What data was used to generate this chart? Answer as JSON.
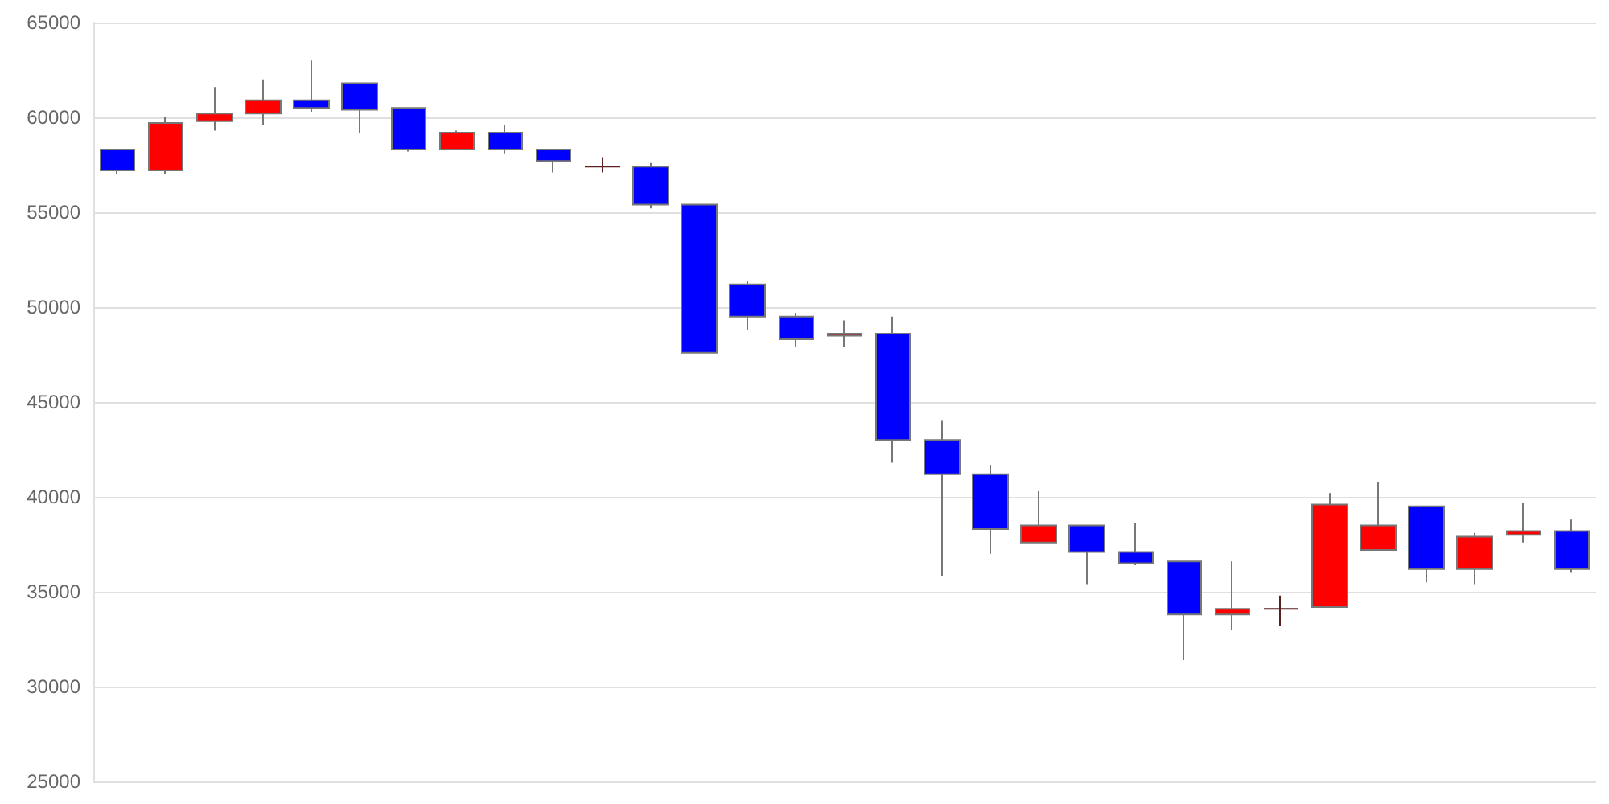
{
  "chart_data": {
    "type": "candlestick",
    "categories": [
      null,
      null,
      null,
      null,
      null,
      null,
      null,
      null,
      null,
      null,
      null,
      null,
      null,
      null,
      null,
      null,
      null,
      null,
      null,
      null,
      null,
      null,
      null,
      null,
      null,
      null,
      null,
      null,
      null,
      null,
      null
    ],
    "ohlc": [
      [
        58300,
        58300,
        57000,
        57200
      ],
      [
        57200,
        60000,
        57000,
        59700
      ],
      [
        59800,
        61600,
        59300,
        60200
      ],
      [
        60200,
        62000,
        59600,
        60900
      ],
      [
        60900,
        63000,
        60300,
        60500
      ],
      [
        61800,
        61800,
        59200,
        60400
      ],
      [
        60500,
        60500,
        58200,
        58300
      ],
      [
        58300,
        59300,
        58300,
        59200
      ],
      [
        59200,
        59600,
        58100,
        58300
      ],
      [
        58300,
        58300,
        57100,
        57700
      ],
      [
        57400,
        57900,
        57100,
        57400
      ],
      [
        57400,
        57600,
        55200,
        55400
      ],
      [
        55400,
        55400,
        47600,
        47600
      ],
      [
        51200,
        51400,
        48800,
        49500
      ],
      [
        49500,
        49700,
        47900,
        48300
      ],
      [
        48500,
        49300,
        47900,
        48600
      ],
      [
        48600,
        49500,
        41800,
        43000
      ],
      [
        43000,
        44000,
        35800,
        41200
      ],
      [
        41200,
        41700,
        37000,
        38300
      ],
      [
        37600,
        40300,
        37600,
        38500
      ],
      [
        38500,
        38500,
        35400,
        37100
      ],
      [
        37100,
        38600,
        36400,
        36500
      ],
      [
        36600,
        36600,
        31400,
        33800
      ],
      [
        33800,
        36600,
        33000,
        34100
      ],
      [
        34100,
        34800,
        33200,
        34100
      ],
      [
        34200,
        40200,
        34200,
        39600
      ],
      [
        37200,
        40800,
        37200,
        38500
      ],
      [
        39500,
        39500,
        35500,
        36200
      ],
      [
        36200,
        38100,
        35400,
        37900
      ],
      [
        38000,
        39700,
        37600,
        38200
      ],
      [
        38200,
        38800,
        36000,
        36200
      ]
    ],
    "colors": [
      "#0000ff",
      "#ff0000",
      "#ff0000",
      "#ff0000",
      "#0000ff",
      "#0000ff",
      "#0000ff",
      "#ff0000",
      "#0000ff",
      "#0000ff",
      "#5a2020",
      "#0000ff",
      "#0000ff",
      "#0000ff",
      "#0000ff",
      "#aa2020",
      "#0000ff",
      "#0000ff",
      "#0000ff",
      "#ff0000",
      "#0000ff",
      "#0000ff",
      "#0000ff",
      "#ff0000",
      "#5a2020",
      "#ff0000",
      "#ff0000",
      "#0000ff",
      "#ff0000",
      "#ff0000",
      "#0000ff"
    ],
    "ylim": [
      25000,
      65000
    ],
    "yticks": [
      25000,
      30000,
      35000,
      40000,
      45000,
      50000,
      55000,
      60000,
      65000
    ],
    "grid": "y",
    "tick_labels": "y"
  }
}
